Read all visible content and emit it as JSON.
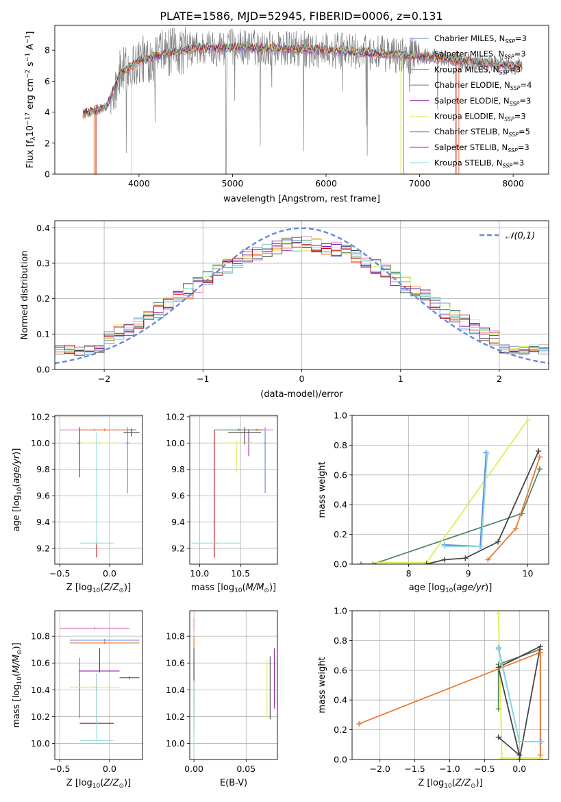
{
  "figure": {
    "title": "PLATE=1586, MJD=52945, FIBERID=0006, z=0.131"
  },
  "colors": {
    "chabrier_miles": "#6688dd",
    "salpeter_miles": "#e377c2",
    "kroupa_miles": "#ee7733",
    "chabrier_elodie": "#558866",
    "salpeter_elodie": "#8822aa",
    "kroupa_elodie": "#ddee55",
    "chabrier_stelib": "#444444",
    "salpeter_stelib": "#bb1111",
    "kroupa_stelib": "#88dddd",
    "gray": "#808080",
    "grid": "#b0b0b0"
  },
  "chart_data": [
    {
      "id": "spectrum",
      "type": "line",
      "xlabel": "wavelength [Angstrom, rest frame]",
      "ylabel": "Flux [fλ10⁻¹⁷ erg cm⁻² s⁻¹ A⁻¹]",
      "xlim": [
        3100,
        8380
      ],
      "ylim": [
        0,
        9.6
      ],
      "xticks": [
        4000,
        5000,
        6000,
        7000,
        8000
      ],
      "yticks": [
        0,
        2,
        4,
        6,
        8
      ],
      "legend_position": "right",
      "legend": [
        {
          "label": "Chabrier MILES, N",
          "sub": "SSP",
          "val": "=3",
          "color": "chabrier_miles"
        },
        {
          "label": "Salpeter MILES, N",
          "sub": "SSP",
          "val": "=3",
          "color": "salpeter_miles"
        },
        {
          "label": "Kroupa MILES, N",
          "sub": "SSP",
          "val": "=3",
          "color": "kroupa_miles"
        },
        {
          "label": "Chabrier ELODIE, N",
          "sub": "SSP",
          "val": "=4",
          "color": "chabrier_elodie"
        },
        {
          "label": "Salpeter ELODIE, N",
          "sub": "SSP",
          "val": "=3",
          "color": "salpeter_elodie"
        },
        {
          "label": "Kroupa ELODIE, N",
          "sub": "SSP",
          "val": "=3",
          "color": "kroupa_elodie"
        },
        {
          "label": "Chabrier STELIB, N",
          "sub": "SSP",
          "val": "=5",
          "color": "chabrier_stelib"
        },
        {
          "label": "Salpeter STELIB, N",
          "sub": "SSP",
          "val": "=3",
          "color": "salpeter_stelib"
        },
        {
          "label": "Kroupa STELIB, N",
          "sub": "SSP",
          "val": "=3",
          "color": "kroupa_stelib"
        }
      ],
      "data_range": [
        3400,
        8100
      ],
      "model_continuum": {
        "x": [
          3400,
          3650,
          3800,
          4000,
          4300,
          4600,
          5000,
          5500,
          6000,
          6500,
          7000,
          7500,
          8000
        ],
        "y": [
          3.9,
          4.3,
          6.5,
          7.3,
          7.8,
          8.1,
          8.2,
          8.1,
          8.0,
          7.8,
          7.6,
          7.3,
          7.0
        ]
      },
      "model_drops": [
        {
          "x": 3520,
          "color": "kroupa_miles"
        },
        {
          "x": 3540,
          "color": "salpeter_stelib"
        },
        {
          "x": 3920,
          "color": "kroupa_elodie"
        },
        {
          "x": 6800,
          "color": "kroupa_elodie"
        },
        {
          "x": 6830,
          "color": "kroupa_miles"
        },
        {
          "x": 7390,
          "color": "salpeter_stelib"
        },
        {
          "x": 7420,
          "color": "kroupa_miles"
        }
      ]
    },
    {
      "id": "residuals",
      "type": "histogram",
      "xlabel": "(data-model)/error",
      "ylabel": "Normed distribution",
      "xlim": [
        -2.5,
        2.5
      ],
      "ylim": [
        0,
        0.42
      ],
      "xticks": [
        -2,
        -1,
        0,
        1,
        2
      ],
      "yticks": [
        0.0,
        0.1,
        0.2,
        0.3,
        0.4
      ],
      "legend_position": "top-right",
      "legend_label": "𝒩(0,1)",
      "gaussian": {
        "mu": 0,
        "sigma": 1,
        "color": "chabrier_miles"
      },
      "bin_width": 0.1,
      "series_colors": [
        "chabrier_miles",
        "salpeter_miles",
        "kroupa_miles",
        "chabrier_elodie",
        "salpeter_elodie",
        "kroupa_elodie",
        "chabrier_stelib",
        "salpeter_stelib",
        "kroupa_stelib"
      ]
    },
    {
      "id": "age_vs_Z",
      "type": "errorbar",
      "xlabel": "Z [log10(Z/Z⊙)]",
      "ylabel": "age  [log10(age/yr)]",
      "xlim": [
        -0.55,
        0.33
      ],
      "ylim": [
        9.08,
        10.21
      ],
      "xticks": [
        -0.5,
        0.0
      ],
      "yticks": [
        9.2,
        9.4,
        9.6,
        9.8,
        10.0,
        10.2
      ],
      "points": [
        {
          "x": 0.18,
          "y": 10.0,
          "xe": [
            0.02,
            0.02
          ],
          "ye": [
            0.38,
            0.12
          ],
          "color": "chabrier_miles"
        },
        {
          "x": -0.15,
          "y": 10.1,
          "xe": [
            0.35,
            0.35
          ],
          "ye": [
            0.01,
            0.01
          ],
          "color": "salpeter_miles"
        },
        {
          "x": -0.05,
          "y": 10.1,
          "xe": [
            0.25,
            0.25
          ],
          "ye": [
            0.01,
            0.01
          ],
          "color": "kroupa_miles"
        },
        {
          "x": 0.22,
          "y": 10.1,
          "xe": [
            0.03,
            0.05
          ],
          "ye": [
            0.01,
            0.01
          ],
          "color": "chabrier_elodie"
        },
        {
          "x": -0.3,
          "y": 10.0,
          "xe": [
            0.02,
            0.02
          ],
          "ye": [
            0.26,
            0.12
          ],
          "color": "salpeter_elodie"
        },
        {
          "x": -0.1,
          "y": 10.0,
          "xe": [
            0.2,
            0.2
          ],
          "ye": [
            0.01,
            0.01
          ],
          "color": "kroupa_elodie"
        },
        {
          "x": 0.22,
          "y": 10.08,
          "xe": [
            0.08,
            0.08
          ],
          "ye": [
            0.03,
            0.03
          ],
          "color": "chabrier_stelib"
        },
        {
          "x": -0.13,
          "y": 9.24,
          "xe": [
            0.01,
            0.01
          ],
          "ye": [
            0.11,
            0.01
          ],
          "color": "salpeter_stelib"
        },
        {
          "x": -0.13,
          "y": 9.24,
          "xe": [
            0.17,
            0.17
          ],
          "ye": [
            0.01,
            0.84
          ],
          "color": "kroupa_stelib"
        }
      ]
    },
    {
      "id": "age_vs_mass",
      "type": "errorbar",
      "xlabel": "mass [log10(M/M⊙)]",
      "ylabel": "",
      "xlim": [
        9.88,
        10.95
      ],
      "ylim": [
        9.08,
        10.21
      ],
      "xticks": [
        10.0,
        10.5
      ],
      "yticks": [
        9.2,
        9.4,
        9.6,
        9.8,
        10.0,
        10.2
      ],
      "points": [
        {
          "x": 10.8,
          "y": 10.0,
          "xe": [
            0.02,
            0.02
          ],
          "ye": [
            0.38,
            0.12
          ],
          "color": "chabrier_miles"
        },
        {
          "x": 10.6,
          "y": 10.1,
          "xe": [
            0.25,
            0.3
          ],
          "ye": [
            0.01,
            0.01
          ],
          "color": "salpeter_miles"
        },
        {
          "x": 10.7,
          "y": 10.1,
          "xe": [
            0.05,
            0.05
          ],
          "ye": [
            0.01,
            0.01
          ],
          "color": "kroupa_miles"
        },
        {
          "x": 10.48,
          "y": 10.1,
          "xe": [
            0.3,
            0.3
          ],
          "ye": [
            0.01,
            0.01
          ],
          "color": "chabrier_elodie"
        },
        {
          "x": 10.6,
          "y": 10.0,
          "xe": [
            0.05,
            0.05
          ],
          "ye": [
            0.1,
            0.1
          ],
          "color": "salpeter_elodie"
        },
        {
          "x": 10.45,
          "y": 10.0,
          "xe": [
            0.22,
            0.2
          ],
          "ye": [
            0.22,
            0.01
          ],
          "color": "kroupa_elodie"
        },
        {
          "x": 10.55,
          "y": 10.08,
          "xe": [
            0.2,
            0.2
          ],
          "ye": [
            0.09,
            0.04
          ],
          "color": "chabrier_stelib"
        },
        {
          "x": 10.18,
          "y": 9.24,
          "xe": [
            0.01,
            0.01
          ],
          "ye": [
            0.11,
            0.86
          ],
          "color": "salpeter_stelib"
        },
        {
          "x": 10.2,
          "y": 9.24,
          "xe": [
            0.3,
            0.3
          ],
          "ye": [
            0.01,
            0.01
          ],
          "color": "kroupa_stelib"
        }
      ]
    },
    {
      "id": "weight_vs_age",
      "type": "line",
      "xlabel": "age  [log10(age/yr)]",
      "ylabel": "mass weight",
      "xlim": [
        7.05,
        10.35
      ],
      "ylim": [
        0.0,
        1.0
      ],
      "xticks": [
        8,
        9,
        10
      ],
      "yticks": [
        0.0,
        0.2,
        0.4,
        0.6,
        0.8,
        1.0
      ],
      "series": [
        {
          "color": "chabrier_elodie",
          "x": [
            7.2,
            7.4,
            9.9,
            10.2
          ],
          "y": [
            0.0,
            0.0,
            0.34,
            0.64
          ]
        },
        {
          "color": "kroupa_elodie",
          "x": [
            7.5,
            8.3,
            10.0
          ],
          "y": [
            0.01,
            0.01,
            0.97
          ]
        },
        {
          "color": "chabrier_stelib",
          "x": [
            8.3,
            8.6,
            8.95,
            9.5,
            10.18
          ],
          "y": [
            0.0,
            0.03,
            0.04,
            0.15,
            0.76
          ]
        },
        {
          "color": "kroupa_miles",
          "x": [
            9.33,
            9.8,
            10.2
          ],
          "y": [
            0.03,
            0.24,
            0.72
          ]
        },
        {
          "color": "chabrier_miles",
          "x": [
            8.6,
            9.2,
            9.3
          ],
          "y": [
            0.13,
            0.12,
            0.75
          ]
        },
        {
          "color": "kroupa_stelib",
          "x": [
            8.6,
            9.22,
            9.32
          ],
          "y": [
            0.12,
            0.12,
            0.74
          ]
        }
      ]
    },
    {
      "id": "mass_vs_Z",
      "type": "errorbar",
      "xlabel": "Z [log10(Z/Z⊙)]",
      "ylabel": "mass [log10(M/M⊙)]",
      "xlim": [
        -0.55,
        0.33
      ],
      "ylim": [
        9.88,
        10.99
      ],
      "xticks": [
        -0.5,
        0.0
      ],
      "yticks": [
        10.0,
        10.2,
        10.4,
        10.6,
        10.8
      ],
      "points": [
        {
          "x": -0.05,
          "y": 10.77,
          "xe": [
            0.35,
            0.35
          ],
          "ye": [
            0.01,
            0.01
          ],
          "color": "chabrier_miles"
        },
        {
          "x": -0.15,
          "y": 10.86,
          "xe": [
            0.35,
            0.35
          ],
          "ye": [
            0.01,
            0.01
          ],
          "color": "salpeter_miles"
        },
        {
          "x": -0.05,
          "y": 10.75,
          "xe": [
            0.35,
            0.35
          ],
          "ye": [
            0.01,
            0.01
          ],
          "color": "kroupa_miles"
        },
        {
          "x": -0.3,
          "y": 10.54,
          "xe": [
            0.01,
            0.01
          ],
          "ye": [
            0.35,
            0.1
          ],
          "color": "chabrier_elodie"
        },
        {
          "x": -0.1,
          "y": 10.54,
          "xe": [
            0.2,
            0.2
          ],
          "ye": [
            0.01,
            0.17
          ],
          "color": "salpeter_elodie"
        },
        {
          "x": -0.15,
          "y": 10.42,
          "xe": [
            0.25,
            0.25
          ],
          "ye": [
            0.01,
            0.01
          ],
          "color": "kroupa_elodie"
        },
        {
          "x": 0.2,
          "y": 10.49,
          "xe": [
            0.1,
            0.1
          ],
          "ye": [
            0.01,
            0.01
          ],
          "color": "chabrier_stelib"
        },
        {
          "x": -0.13,
          "y": 10.15,
          "xe": [
            0.17,
            0.17
          ],
          "ye": [
            0.01,
            0.37
          ],
          "color": "salpeter_stelib"
        },
        {
          "x": -0.13,
          "y": 10.02,
          "xe": [
            0.17,
            0.17
          ],
          "ye": [
            0.01,
            0.5
          ],
          "color": "kroupa_stelib"
        }
      ]
    },
    {
      "id": "mass_vs_ebv",
      "type": "errorbar",
      "xlabel": "E(B-V)",
      "ylabel": "",
      "xlim": [
        -0.004,
        0.08
      ],
      "ylim": [
        9.88,
        10.99
      ],
      "xticks": [
        0.0,
        0.05
      ],
      "yticks": [
        10.0,
        10.2,
        10.4,
        10.6,
        10.8
      ],
      "points": [
        {
          "x": 0.0,
          "y": 10.77,
          "xe": [
            0.0005,
            0.0005
          ],
          "ye": [
            0.1,
            0.03
          ],
          "color": "chabrier_miles"
        },
        {
          "x": 0.0,
          "y": 10.86,
          "xe": [
            0.0005,
            0.0005
          ],
          "ye": [
            0.02,
            0.08
          ],
          "color": "salpeter_miles"
        },
        {
          "x": 0.0,
          "y": 10.75,
          "xe": [
            0.0005,
            0.0005
          ],
          "ye": [
            0.05,
            0.05
          ],
          "color": "kroupa_miles"
        },
        {
          "x": 0.0,
          "y": 10.54,
          "xe": [
            0.0005,
            0.0005
          ],
          "ye": [
            0.3,
            0.1
          ],
          "color": "chabrier_elodie"
        },
        {
          "x": 0.077,
          "y": 10.54,
          "xe": [
            0.0005,
            0.0005
          ],
          "ye": [
            0.28,
            0.17
          ],
          "color": "salpeter_elodie"
        },
        {
          "x": 0.07,
          "y": 10.42,
          "xe": [
            0.0005,
            0.0005
          ],
          "ye": [
            0.23,
            0.2
          ],
          "color": "kroupa_elodie"
        },
        {
          "x": 0.0,
          "y": 10.49,
          "xe": [
            0.0005,
            0.0005
          ],
          "ye": [
            0.05,
            0.22
          ],
          "color": "chabrier_stelib"
        },
        {
          "x": 0.073,
          "y": 10.45,
          "xe": [
            0.0005,
            0.0005
          ],
          "ye": [
            0.27,
            0.2
          ],
          "color": "chabrier_stelib"
        },
        {
          "x": 0.0,
          "y": 10.15,
          "xe": [
            0.0005,
            0.0005
          ],
          "ye": [
            0.05,
            0.33
          ],
          "color": "salpeter_stelib"
        },
        {
          "x": 0.0,
          "y": 10.02,
          "xe": [
            0.0005,
            0.0005
          ],
          "ye": [
            0.05,
            0.45
          ],
          "color": "kroupa_stelib"
        }
      ]
    },
    {
      "id": "weight_vs_Z",
      "type": "line",
      "xlabel": "Z [log10(Z/Z⊙)]",
      "ylabel": "mass weight",
      "xlim": [
        -2.4,
        0.42
      ],
      "ylim": [
        0.0,
        1.0
      ],
      "xticks": [
        -2.0,
        -1.5,
        -1.0,
        -0.5,
        0.0
      ],
      "yticks": [
        0.0,
        0.2,
        0.4,
        0.6,
        0.8,
        1.0
      ],
      "series": [
        {
          "color": "chabrier_elodie",
          "x": [
            -0.3,
            -0.3,
            0.3,
            0.3
          ],
          "y": [
            0.34,
            0.64,
            0.74,
            0.0
          ]
        },
        {
          "color": "kroupa_elodie",
          "x": [
            -0.3,
            -0.25,
            0.0,
            0.3
          ],
          "y": [
            0.98,
            0.01,
            0.01,
            0.01
          ]
        },
        {
          "color": "chabrier_stelib",
          "x": [
            -0.3,
            0.0,
            -0.3,
            0.3,
            0.0
          ],
          "y": [
            0.15,
            0.03,
            0.62,
            0.76,
            0.0
          ]
        },
        {
          "color": "kroupa_miles",
          "x": [
            -2.3,
            0.3,
            0.3,
            0.3
          ],
          "y": [
            0.24,
            0.72,
            0.03,
            0.72
          ]
        },
        {
          "color": "chabrier_miles",
          "x": [
            -0.3,
            0.0,
            0.3
          ],
          "y": [
            0.75,
            0.12,
            0.12
          ]
        },
        {
          "color": "kroupa_stelib",
          "x": [
            -0.3,
            0.0,
            0.32
          ],
          "y": [
            0.74,
            0.12,
            0.12
          ]
        }
      ]
    }
  ]
}
